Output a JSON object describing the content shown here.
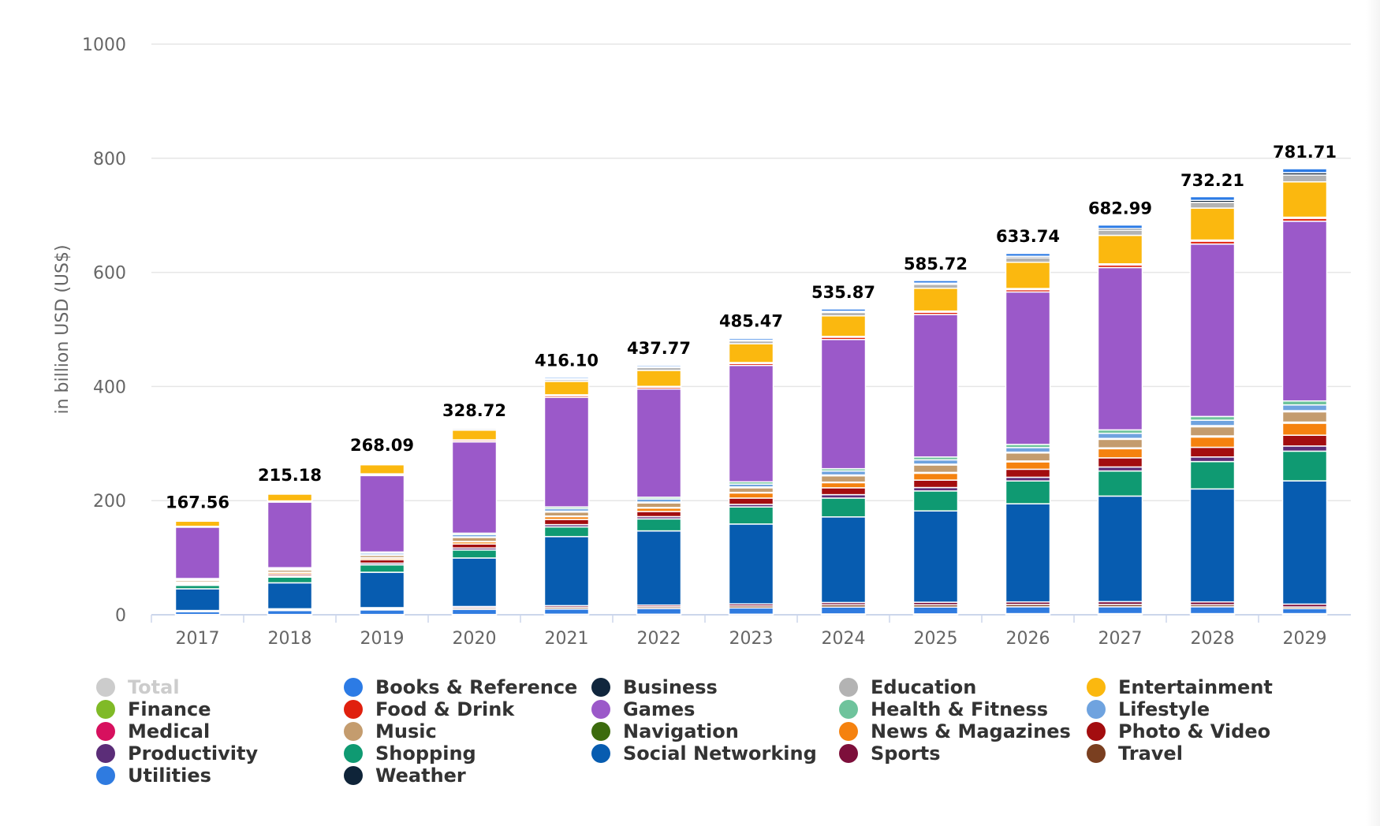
{
  "chart_data": {
    "type": "bar",
    "stacked": true,
    "ylabel": "in billion USD (US$)",
    "xlabel": "",
    "ylim": [
      0,
      1000
    ],
    "yticks": [
      0,
      200,
      400,
      600,
      800,
      1000
    ],
    "grid": true,
    "legend_position": "bottom",
    "categories": [
      "2017",
      "2018",
      "2019",
      "2020",
      "2021",
      "2022",
      "2023",
      "2024",
      "2025",
      "2026",
      "2027",
      "2028",
      "2029"
    ],
    "totals": [
      "167.56",
      "215.18",
      "268.09",
      "328.72",
      "416.10",
      "437.77",
      "485.47",
      "535.87",
      "585.72",
      "633.74",
      "682.99",
      "732.21",
      "781.71"
    ],
    "total_series": {
      "name": "Total",
      "color": "#cccccc",
      "visible": false
    },
    "series": [
      {
        "name": "Books & Reference",
        "color": "#2c7be5",
        "values": [
          1,
          1,
          2,
          2,
          2.5,
          2.5,
          3,
          4,
          4.5,
          5,
          6,
          6.5,
          7
        ]
      },
      {
        "name": "Business",
        "color": "#10263d",
        "values": [
          0.5,
          0.5,
          1,
          1,
          1.5,
          1.5,
          1.5,
          2,
          2,
          2.5,
          3,
          3.5,
          4
        ]
      },
      {
        "name": "Education",
        "color": "#b3b3b3",
        "values": [
          1,
          1.5,
          2,
          2.5,
          3,
          5,
          5,
          6,
          7,
          8,
          9,
          10,
          12
        ]
      },
      {
        "name": "Entertainment",
        "color": "#fbb80f",
        "values": [
          9,
          12,
          16,
          17,
          23.5,
          28,
          33,
          36,
          40,
          46,
          50,
          56,
          62
        ]
      },
      {
        "name": "Finance",
        "color": "#80ba27",
        "values": [
          0.5,
          0.5,
          1,
          1,
          1.5,
          1.5,
          1.5,
          1.5,
          2,
          2,
          2,
          2,
          2
        ]
      },
      {
        "name": "Food & Drink",
        "color": "#e0200e",
        "values": [
          1,
          1.5,
          2,
          2.5,
          3,
          3,
          3.5,
          4,
          4,
          4,
          4.5,
          5,
          5
        ]
      },
      {
        "name": "Games",
        "color": "#9b59c9",
        "values": [
          90,
          115,
          134,
          160,
          192,
          189.77,
          204,
          226.37,
          249.72,
          267.24,
          284.49,
          302.21,
          315
        ]
      },
      {
        "name": "Health & Fitness",
        "color": "#6ec39c",
        "values": [
          1,
          1.5,
          2,
          2.5,
          3,
          3,
          4,
          4,
          5,
          5.5,
          6,
          6.5,
          7
        ]
      },
      {
        "name": "Lifestyle",
        "color": "#6fa3df",
        "values": [
          1.5,
          2,
          3,
          4,
          4.5,
          5.5,
          5,
          7,
          7.5,
          8,
          9,
          9.5,
          10
        ]
      },
      {
        "name": "Medical",
        "color": "#d7105e",
        "values": [
          0.5,
          0.5,
          1,
          1,
          1.5,
          1.5,
          1.5,
          1.5,
          1.5,
          1.5,
          1.5,
          2,
          2
        ]
      },
      {
        "name": "Music",
        "color": "#c49c6e",
        "values": [
          3,
          4,
          4,
          7,
          7,
          8,
          8,
          11,
          13,
          14,
          15,
          16,
          18
        ]
      },
      {
        "name": "Navigation",
        "color": "#3c6b0e",
        "values": [
          0.5,
          0.5,
          0.5,
          0.5,
          1,
          1,
          1,
          1,
          1.5,
          1.5,
          1.5,
          2,
          2
        ]
      },
      {
        "name": "News & Magazines",
        "color": "#f5820f",
        "values": [
          2,
          3,
          3,
          4,
          5,
          6,
          9,
          9,
          12,
          13,
          16,
          18,
          21
        ]
      },
      {
        "name": "Photo & Video",
        "color": "#a30d0f",
        "values": [
          2,
          3,
          6,
          7,
          9,
          9,
          11,
          12,
          13,
          14,
          16,
          17,
          19
        ]
      },
      {
        "name": "Productivity",
        "color": "#5b2d78",
        "values": [
          1.5,
          2,
          3,
          3.5,
          4,
          4,
          4.5,
          6,
          6,
          6.5,
          7,
          8,
          9
        ]
      },
      {
        "name": "Shopping",
        "color": "#0f9a72",
        "values": [
          6,
          10,
          13,
          14,
          17,
          21,
          30,
          33,
          35,
          40,
          44,
          48,
          52
        ]
      },
      {
        "name": "Social Networking",
        "color": "#075cb0",
        "values": [
          38,
          45.5,
          62,
          85,
          121,
          130,
          140,
          150,
          160,
          172,
          185,
          198,
          216
        ]
      },
      {
        "name": "Sports",
        "color": "#7d0f3b",
        "values": [
          1,
          1.5,
          2,
          2.5,
          3,
          3,
          3.5,
          4,
          4.5,
          4.5,
          5,
          5,
          5
        ]
      },
      {
        "name": "Travel",
        "color": "#7a3f20",
        "values": [
          1,
          1.5,
          2,
          2.5,
          3,
          3,
          3.5,
          4,
          4,
          4,
          4,
          3.5,
          3
        ]
      },
      {
        "name": "Utilities",
        "color": "#2f7be0",
        "values": [
          5,
          7,
          8,
          9,
          9,
          10,
          11,
          12,
          12,
          12,
          12,
          12,
          8.71
        ]
      },
      {
        "name": "Weather",
        "color": "#0f2439",
        "values": [
          0.5,
          0.5,
          0.5,
          0.5,
          1,
          1,
          1,
          1.5,
          1.5,
          2,
          2,
          2,
          2
        ]
      }
    ]
  }
}
